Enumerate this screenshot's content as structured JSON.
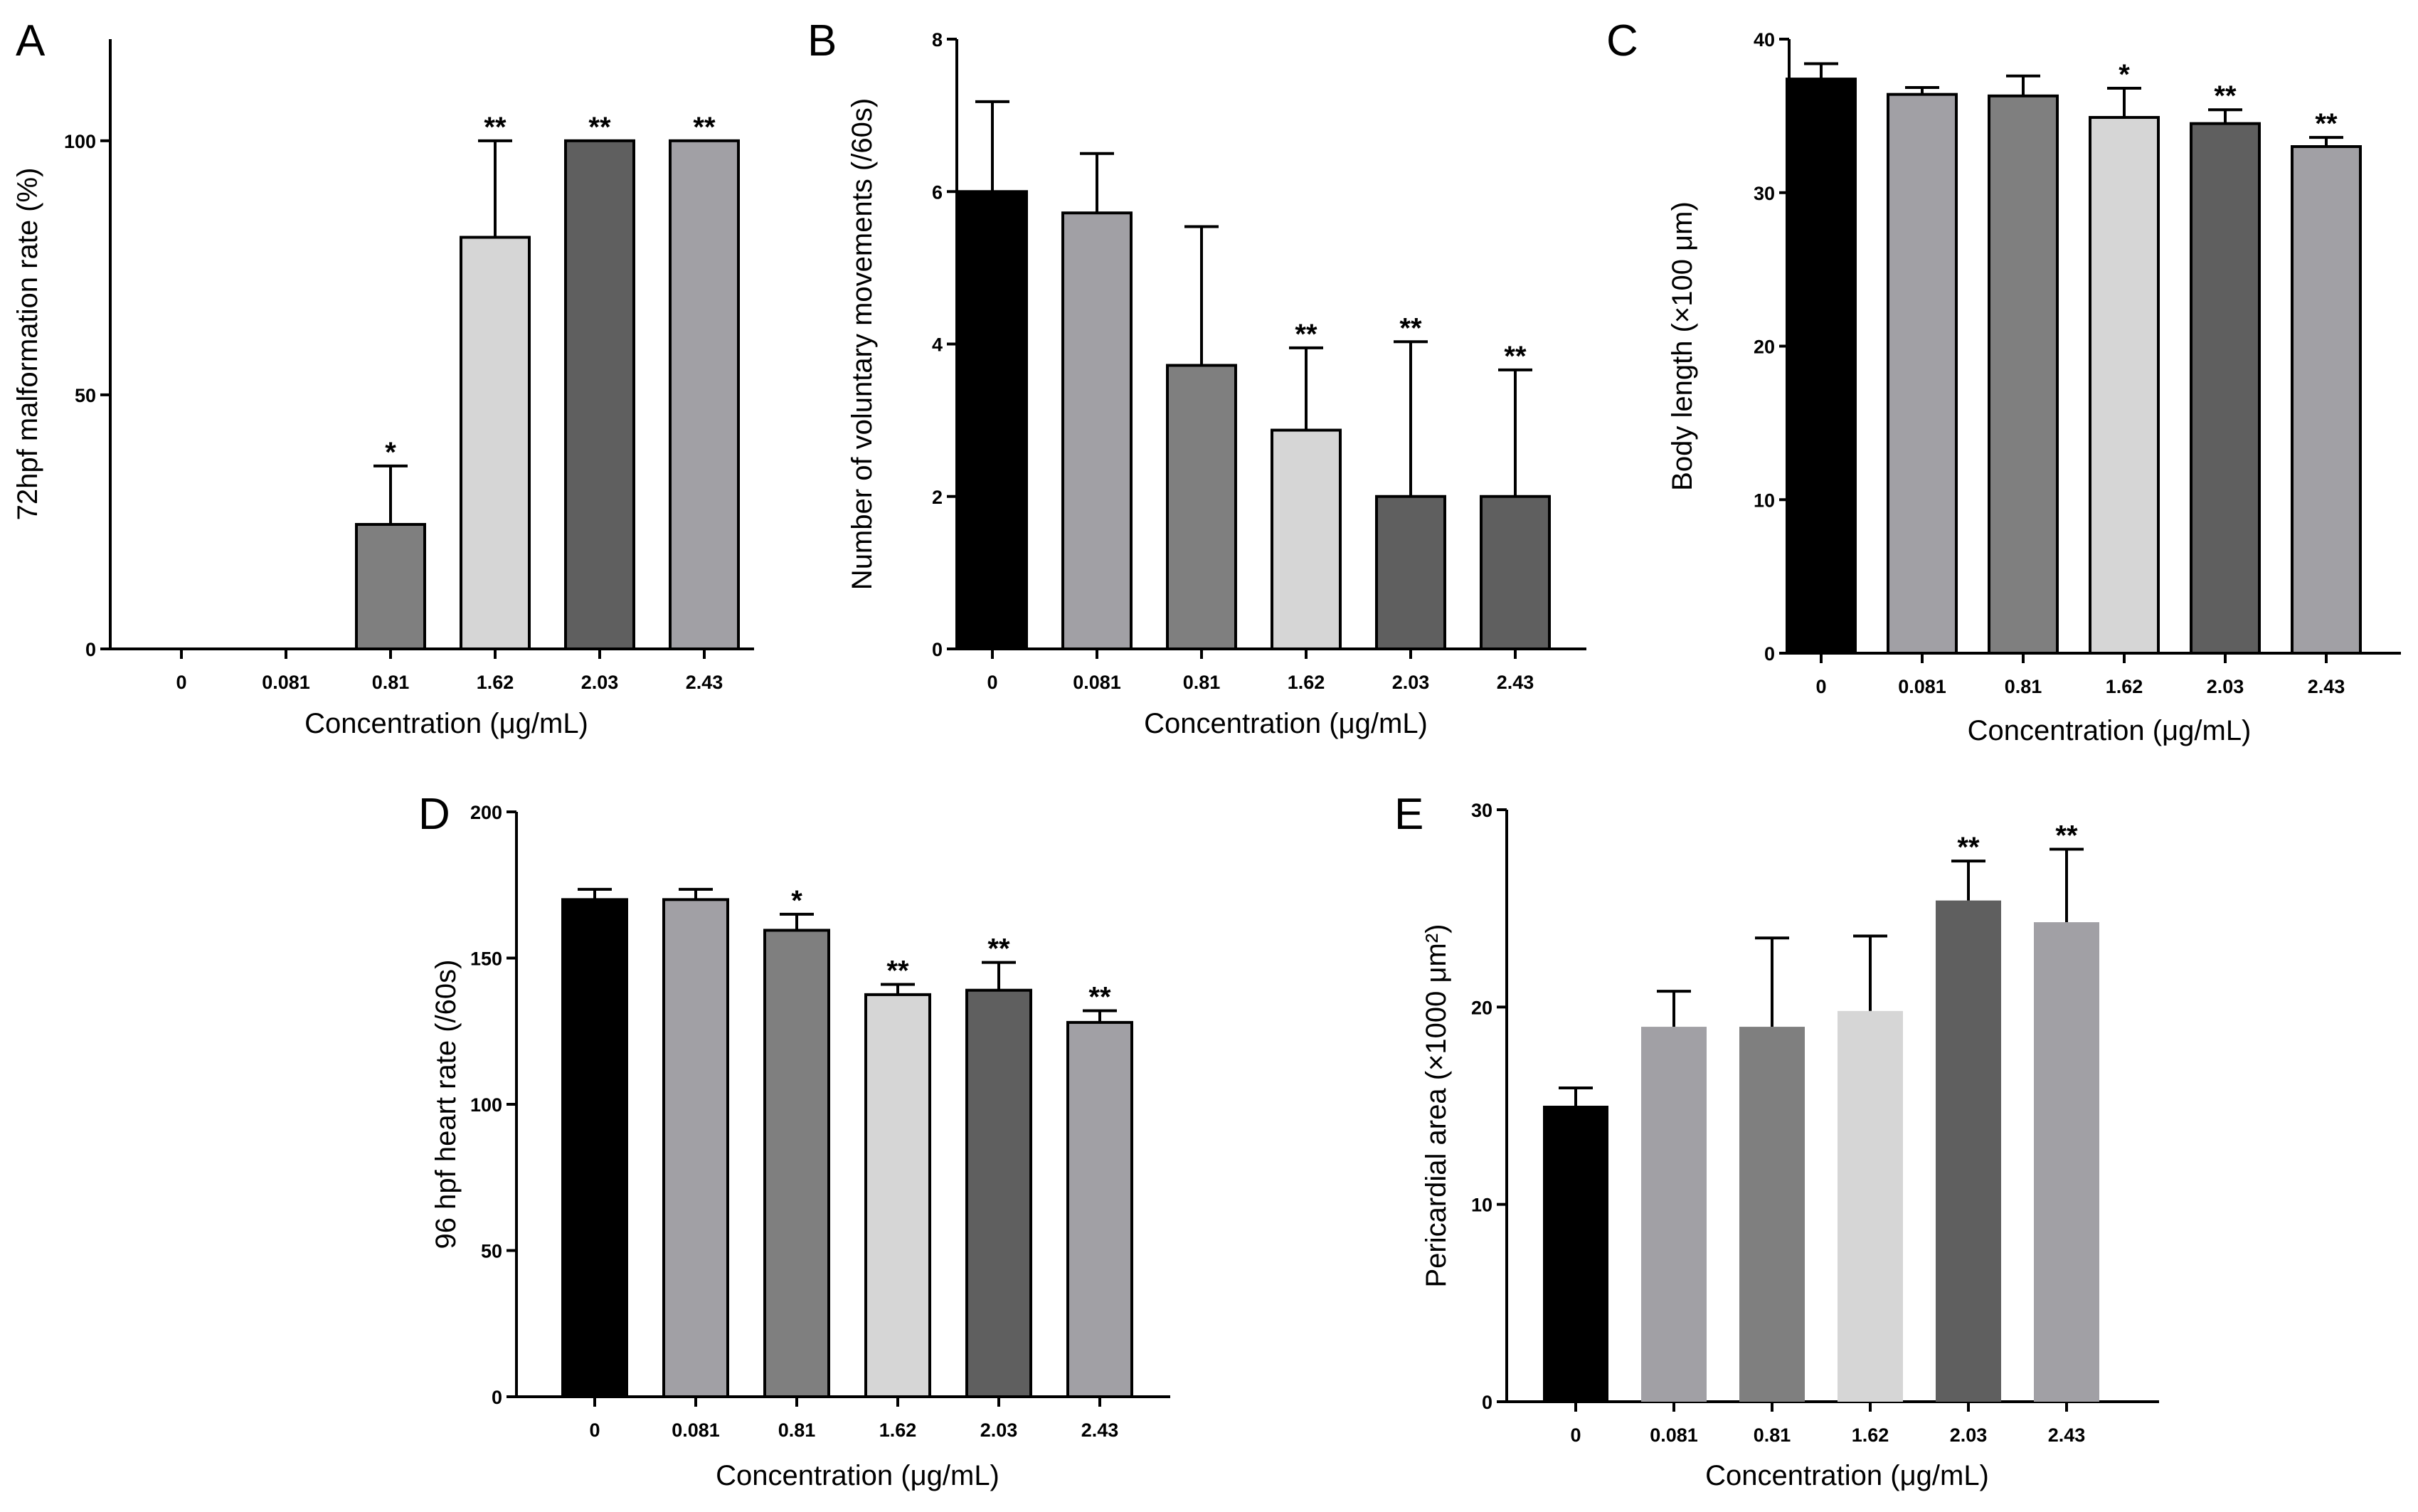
{
  "chart_data": [
    {
      "type": "bar",
      "panel_label": "A",
      "categories": [
        "0",
        "0.081",
        "0.81",
        "1.62",
        "2.03",
        "2.43"
      ],
      "values": [
        0,
        0,
        24.5,
        81,
        100,
        100
      ],
      "errors": [
        0,
        0,
        11.5,
        19,
        0,
        0
      ],
      "significance": [
        "",
        "",
        "*",
        "**",
        "**",
        "**"
      ],
      "colors": [
        "#000000",
        "#a1a0a5",
        "#7f7f7f",
        "#d6d6d6",
        "#5f5f5f",
        "#a1a0a5"
      ],
      "outlined": true,
      "xlabel": "Concentration (μg/mL)",
      "ylabel": "72hpf malformation rate (%)",
      "ylim": [
        0,
        120
      ],
      "yticks": [
        "0",
        "50",
        "100"
      ],
      "grid": false
    },
    {
      "type": "bar",
      "panel_label": "B",
      "categories": [
        "0",
        "0.081",
        "0.81",
        "1.62",
        "2.03",
        "2.43"
      ],
      "values": [
        6.0,
        5.72,
        3.72,
        2.87,
        2.0,
        2.0
      ],
      "errors": [
        1.18,
        0.78,
        1.82,
        1.08,
        2.03,
        1.66
      ],
      "significance": [
        "",
        "",
        "",
        "**",
        "**",
        "**"
      ],
      "colors": [
        "#000000",
        "#a1a0a5",
        "#7f7f7f",
        "#d6d6d6",
        "#5f5f5f",
        "#5f5f5f"
      ],
      "outlined": true,
      "xlabel": "Concentration (μg/mL)",
      "ylabel": "Number of voluntary movements (/60s)",
      "ylim": [
        0,
        8
      ],
      "yticks": [
        "0",
        "2",
        "4",
        "6",
        "8"
      ],
      "grid": false
    },
    {
      "type": "bar",
      "panel_label": "C",
      "categories": [
        "0",
        "0.081",
        "0.81",
        "1.62",
        "2.03",
        "2.43"
      ],
      "values": [
        37.4,
        36.4,
        36.3,
        34.9,
        34.5,
        33.0
      ],
      "errors": [
        1.0,
        0.45,
        1.3,
        1.9,
        0.9,
        0.6
      ],
      "significance": [
        "",
        "",
        "",
        "*",
        "**",
        "**"
      ],
      "colors": [
        "#000000",
        "#a1a0a5",
        "#7f7f7f",
        "#d6d6d6",
        "#5f5f5f",
        "#a1a0a5"
      ],
      "outlined": true,
      "xlabel": "Concentration (μg/mL)",
      "ylabel": "Body length (×100 μm)",
      "ylim": [
        0,
        40
      ],
      "yticks": [
        "0",
        "10",
        "20",
        "30",
        "40"
      ],
      "grid": false
    },
    {
      "type": "bar",
      "panel_label": "D",
      "categories": [
        "0",
        "0.081",
        "0.81",
        "1.62",
        "2.03",
        "2.43"
      ],
      "values": [
        170,
        170,
        159.5,
        137.5,
        139,
        128
      ],
      "errors": [
        3.5,
        3.5,
        5.5,
        3.5,
        9.5,
        4.0
      ],
      "significance": [
        "",
        "",
        "*",
        "**",
        "**",
        "**"
      ],
      "colors": [
        "#000000",
        "#a1a0a5",
        "#7f7f7f",
        "#d6d6d6",
        "#5f5f5f",
        "#a1a0a5"
      ],
      "outlined": true,
      "xlabel": "Concentration (μg/mL)",
      "ylabel": "96 hpf  heart rate (/60s)",
      "ylim": [
        0,
        200
      ],
      "yticks": [
        "0",
        "50",
        "100",
        "150",
        "200"
      ],
      "grid": false
    },
    {
      "type": "bar",
      "panel_label": "E",
      "categories": [
        "0",
        "0.081",
        "0.81",
        "1.62",
        "2.03",
        "2.43"
      ],
      "values": [
        15.0,
        19.0,
        19.0,
        19.8,
        25.4,
        24.3
      ],
      "errors": [
        0.9,
        1.8,
        4.5,
        3.8,
        2.0,
        3.7
      ],
      "significance": [
        "",
        "",
        "",
        "",
        "**",
        "**"
      ],
      "colors": [
        "#000000",
        "#a1a0a5",
        "#7f7f7f",
        "#d6d6d6",
        "#5f5f5f",
        "#a1a0a5"
      ],
      "outlined": false,
      "xlabel": "Concentration (μg/mL)",
      "ylabel": "Pericardial area (×1000 μm²)",
      "ylim": [
        0,
        30
      ],
      "yticks": [
        "0",
        "10",
        "20",
        "30"
      ],
      "grid": false
    }
  ]
}
